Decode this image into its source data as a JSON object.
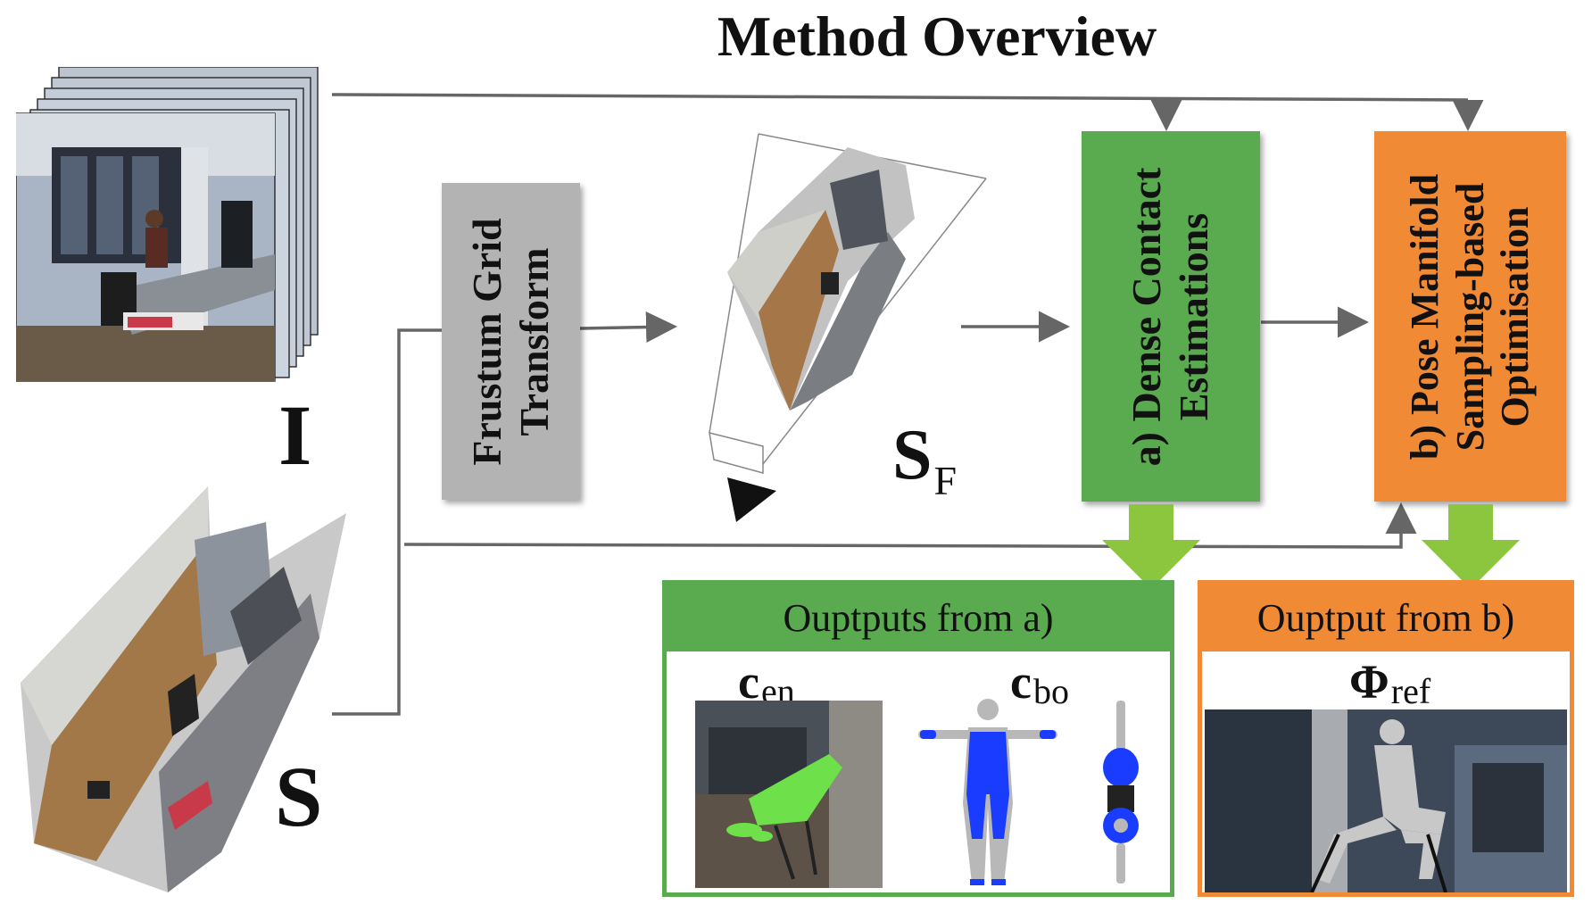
{
  "title": "Method Overview",
  "symbols": {
    "input_images": "I",
    "scene": "S",
    "frustum_scene_main": "S",
    "frustum_scene_sub": "F"
  },
  "boxes": {
    "frustum": {
      "line1": "Frustum Grid",
      "line2": "Transform",
      "color": "#b3b3b3"
    },
    "contact": {
      "line1": "a) Dense Contact",
      "line2": "Estimations",
      "color": "#5aaa50"
    },
    "pose": {
      "line1": "b) Pose Manifold",
      "line2": "Sampling-based",
      "line3": "Optimisation",
      "color": "#f08a35"
    }
  },
  "outputs": {
    "a": {
      "header": "Ouptputs from a)",
      "c_en_main": "c",
      "c_en_sub": "en",
      "c_bo_main": "c",
      "c_bo_sub": "bo",
      "color": "#5aaa50"
    },
    "b": {
      "header": "Ouptput from b)",
      "phi_main": "Φ",
      "phi_sub": "ref",
      "color": "#f08a35"
    }
  },
  "colors": {
    "arrow": "#666666",
    "output_arrow": "#8cc63f",
    "contact_blue": "#1a3cff",
    "chair_green": "#6ee04a"
  }
}
